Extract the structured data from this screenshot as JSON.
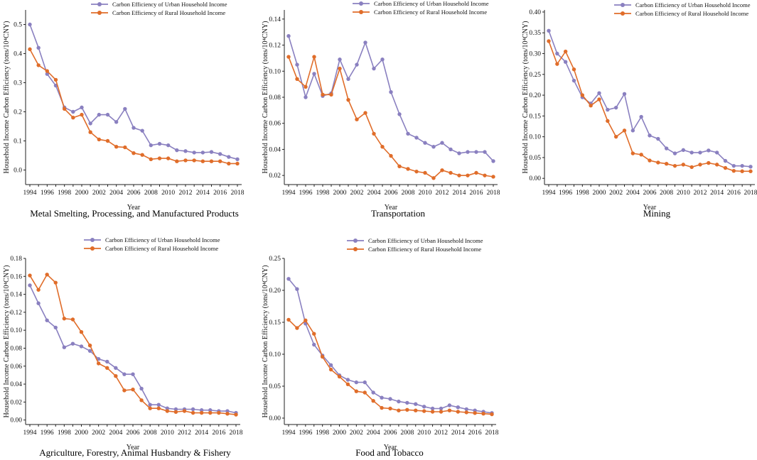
{
  "colors": {
    "urban": "#8a80c0",
    "rural": "#e06d2a",
    "axis": "#222222"
  },
  "common": {
    "legend_urban": "Carbon Efficiency of Urban Household Income",
    "legend_rural": "Carbon Efficiency of Rural Household Income",
    "xlabel": "Year",
    "ylabel": "Household Income Carbon Efficiency  (tons/10⁴CNY)"
  },
  "chart_data": [
    {
      "type": "line",
      "title": "Metal Smelting, Processing, and Manufactured Products",
      "x": [
        1994,
        1995,
        1996,
        1997,
        1998,
        1999,
        2000,
        2001,
        2002,
        2003,
        2004,
        2005,
        2006,
        2007,
        2008,
        2009,
        2010,
        2011,
        2012,
        2013,
        2014,
        2015,
        2016,
        2017,
        2018
      ],
      "xticks": [
        "1994",
        "1996",
        "1998",
        "2000",
        "2002",
        "2004",
        "2006",
        "2008",
        "2010",
        "2012",
        "2014",
        "2016",
        "2018"
      ],
      "ylim": [
        -0.05,
        0.55
      ],
      "yticks": [
        "0.0",
        "0.1",
        "0.2",
        "0.3",
        "0.4",
        "0.5"
      ],
      "ytick_values": [
        0.0,
        0.1,
        0.2,
        0.3,
        0.4,
        0.5
      ],
      "series": [
        {
          "name": "Carbon Efficiency of Urban Household Income",
          "values": [
            0.5,
            0.42,
            0.33,
            0.29,
            0.215,
            0.2,
            0.215,
            0.16,
            0.19,
            0.19,
            0.165,
            0.21,
            0.145,
            0.135,
            0.085,
            0.09,
            0.085,
            0.068,
            0.065,
            0.06,
            0.06,
            0.062,
            0.055,
            0.045,
            0.037
          ]
        },
        {
          "name": "Carbon Efficiency of Rural Household Income",
          "values": [
            0.415,
            0.36,
            0.34,
            0.31,
            0.21,
            0.18,
            0.19,
            0.13,
            0.105,
            0.1,
            0.08,
            0.078,
            0.058,
            0.052,
            0.037,
            0.04,
            0.04,
            0.03,
            0.033,
            0.033,
            0.03,
            0.03,
            0.03,
            0.022,
            0.022
          ]
        }
      ]
    },
    {
      "type": "line",
      "title": "Transportation",
      "x": [
        1994,
        1995,
        1996,
        1997,
        1998,
        1999,
        2000,
        2001,
        2002,
        2003,
        2004,
        2005,
        2006,
        2007,
        2008,
        2009,
        2010,
        2011,
        2012,
        2013,
        2014,
        2015,
        2016,
        2017,
        2018
      ],
      "xticks": [
        "1994",
        "1996",
        "1998",
        "2000",
        "2002",
        "2004",
        "2006",
        "2008",
        "2010",
        "2012",
        "2014",
        "2016",
        "2018"
      ],
      "ylim": [
        0.013,
        0.147
      ],
      "yticks": [
        "0.02",
        "0.04",
        "0.06",
        "0.08",
        "0.10",
        "0.12",
        "0.14"
      ],
      "ytick_values": [
        0.02,
        0.04,
        0.06,
        0.08,
        0.1,
        0.12,
        0.14
      ],
      "series": [
        {
          "name": "Carbon Efficiency of Urban Household Income",
          "values": [
            0.127,
            0.105,
            0.08,
            0.098,
            0.081,
            0.083,
            0.109,
            0.094,
            0.105,
            0.122,
            0.102,
            0.109,
            0.084,
            0.067,
            0.052,
            0.049,
            0.045,
            0.042,
            0.045,
            0.04,
            0.037,
            0.038,
            0.038,
            0.038,
            0.031
          ]
        },
        {
          "name": "Carbon Efficiency of Rural Household Income",
          "values": [
            0.111,
            0.094,
            0.088,
            0.111,
            0.082,
            0.082,
            0.102,
            0.078,
            0.063,
            0.068,
            0.052,
            0.042,
            0.035,
            0.027,
            0.025,
            0.023,
            0.022,
            0.018,
            0.024,
            0.022,
            0.02,
            0.02,
            0.022,
            0.02,
            0.019
          ]
        }
      ]
    },
    {
      "type": "line",
      "title": "Mining",
      "x": [
        1994,
        1995,
        1996,
        1997,
        1998,
        1999,
        2000,
        2001,
        2002,
        2003,
        2004,
        2005,
        2006,
        2007,
        2008,
        2009,
        2010,
        2011,
        2012,
        2013,
        2014,
        2015,
        2016,
        2017,
        2018
      ],
      "xticks": [
        "1994",
        "1996",
        "1998",
        "2000",
        "2002",
        "2004",
        "2006",
        "2008",
        "2010",
        "2012",
        "2014",
        "2016",
        "2018"
      ],
      "ylim": [
        -0.015,
        0.405
      ],
      "yticks": [
        "0.00",
        "0.05",
        "0.10",
        "0.15",
        "0.20",
        "0.25",
        "0.30",
        "0.35",
        "0.40"
      ],
      "ytick_values": [
        0.0,
        0.05,
        0.1,
        0.15,
        0.2,
        0.25,
        0.3,
        0.35,
        0.4
      ],
      "series": [
        {
          "name": "Carbon Efficiency of Urban Household Income",
          "values": [
            0.355,
            0.3,
            0.28,
            0.235,
            0.195,
            0.18,
            0.205,
            0.165,
            0.17,
            0.203,
            0.115,
            0.148,
            0.103,
            0.095,
            0.072,
            0.06,
            0.068,
            0.062,
            0.062,
            0.067,
            0.062,
            0.042,
            0.03,
            0.03,
            0.028
          ]
        },
        {
          "name": "Carbon Efficiency of Rural Household Income",
          "values": [
            0.33,
            0.275,
            0.305,
            0.262,
            0.2,
            0.175,
            0.19,
            0.138,
            0.1,
            0.115,
            0.06,
            0.057,
            0.043,
            0.038,
            0.035,
            0.03,
            0.033,
            0.027,
            0.033,
            0.037,
            0.033,
            0.025,
            0.018,
            0.017,
            0.017
          ]
        }
      ]
    },
    {
      "type": "line",
      "title": "Agriculture, Forestry, Animal Husbandry & Fishery",
      "x": [
        1994,
        1995,
        1996,
        1997,
        1998,
        1999,
        2000,
        2001,
        2002,
        2003,
        2004,
        2005,
        2006,
        2007,
        2008,
        2009,
        2010,
        2011,
        2012,
        2013,
        2014,
        2015,
        2016,
        2017,
        2018
      ],
      "xticks": [
        "1994",
        "1996",
        "1998",
        "2000",
        "2002",
        "2004",
        "2006",
        "2008",
        "2010",
        "2012",
        "2014",
        "2016",
        "2018"
      ],
      "ylim": [
        -0.005,
        0.18
      ],
      "yticks": [
        "0.00",
        "0.02",
        "0.04",
        "0.06",
        "0.08",
        "0.10",
        "0.12",
        "0.14",
        "0.16",
        "0.18"
      ],
      "ytick_values": [
        0.0,
        0.02,
        0.04,
        0.06,
        0.08,
        0.1,
        0.12,
        0.14,
        0.16,
        0.18
      ],
      "series": [
        {
          "name": "Carbon Efficiency of Urban Household Income",
          "values": [
            0.15,
            0.13,
            0.111,
            0.103,
            0.081,
            0.085,
            0.082,
            0.077,
            0.068,
            0.065,
            0.058,
            0.051,
            0.051,
            0.035,
            0.017,
            0.017,
            0.013,
            0.012,
            0.012,
            0.012,
            0.011,
            0.011,
            0.01,
            0.01,
            0.008
          ]
        },
        {
          "name": "Carbon Efficiency of Rural Household Income",
          "values": [
            0.161,
            0.145,
            0.162,
            0.153,
            0.113,
            0.112,
            0.098,
            0.083,
            0.063,
            0.058,
            0.049,
            0.033,
            0.034,
            0.022,
            0.013,
            0.013,
            0.01,
            0.009,
            0.01,
            0.008,
            0.008,
            0.008,
            0.008,
            0.007,
            0.006
          ]
        }
      ]
    },
    {
      "type": "line",
      "title": "Food and Tobacco",
      "x": [
        1994,
        1995,
        1996,
        1997,
        1998,
        1999,
        2000,
        2001,
        2002,
        2003,
        2004,
        2005,
        2006,
        2007,
        2008,
        2009,
        2010,
        2011,
        2012,
        2013,
        2014,
        2015,
        2016,
        2017,
        2018
      ],
      "xticks": [
        "1994",
        "1996",
        "1998",
        "2000",
        "2002",
        "2004",
        "2006",
        "2008",
        "2010",
        "2012",
        "2014",
        "2016",
        "2018"
      ],
      "ylim": [
        -0.01,
        0.25
      ],
      "yticks": [
        "0.00",
        "0.05",
        "0.10",
        "0.15",
        "0.20",
        "0.25"
      ],
      "ytick_values": [
        0.0,
        0.05,
        0.1,
        0.15,
        0.2,
        0.25
      ],
      "series": [
        {
          "name": "Carbon Efficiency of Urban Household Income",
          "values": [
            0.218,
            0.202,
            0.148,
            0.115,
            0.098,
            0.083,
            0.067,
            0.06,
            0.056,
            0.056,
            0.04,
            0.032,
            0.03,
            0.026,
            0.024,
            0.022,
            0.018,
            0.015,
            0.015,
            0.02,
            0.017,
            0.014,
            0.012,
            0.01,
            0.008
          ]
        },
        {
          "name": "Carbon Efficiency of Rural Household Income",
          "values": [
            0.154,
            0.141,
            0.153,
            0.132,
            0.096,
            0.076,
            0.065,
            0.053,
            0.042,
            0.04,
            0.027,
            0.016,
            0.015,
            0.012,
            0.013,
            0.012,
            0.011,
            0.01,
            0.01,
            0.012,
            0.01,
            0.009,
            0.008,
            0.007,
            0.006
          ]
        }
      ]
    }
  ]
}
